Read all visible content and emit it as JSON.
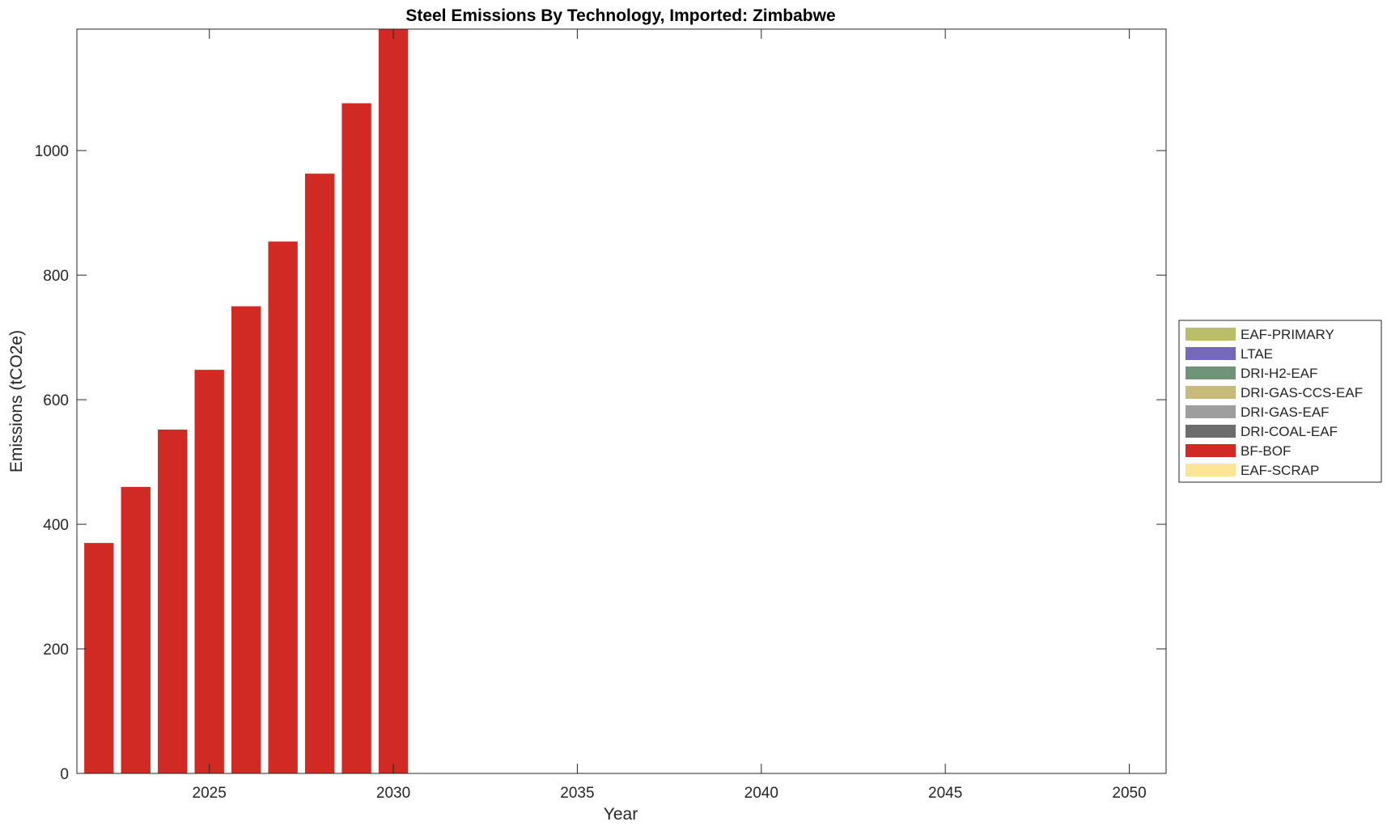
{
  "chart_data": {
    "type": "bar",
    "stacked": true,
    "title": "Steel Emissions By Technology, Imported: Zimbabwe",
    "xlabel": "Year",
    "ylabel": "Emissions (tCO2e)",
    "xlim": [
      2021.4,
      2051
    ],
    "ylim": [
      0,
      1195
    ],
    "xticks": [
      2025,
      2030,
      2035,
      2040,
      2045,
      2050
    ],
    "yticks": [
      0,
      200,
      400,
      600,
      800,
      1000
    ],
    "grid": false,
    "legend_position": "outside-right",
    "x": [
      2022,
      2023,
      2024,
      2025,
      2026,
      2027,
      2028,
      2029,
      2030
    ],
    "series": [
      {
        "name": "EAF-PRIMARY",
        "color": "#b9bf66",
        "values": [
          0,
          0,
          0,
          0,
          0,
          0,
          0,
          0,
          0
        ]
      },
      {
        "name": "LTAE",
        "color": "#7469b8",
        "values": [
          0,
          0,
          0,
          0,
          0,
          0,
          0,
          0,
          0
        ]
      },
      {
        "name": "DRI-H2-EAF",
        "color": "#6f9478",
        "values": [
          0,
          0,
          0,
          0,
          0,
          0,
          0,
          0,
          0
        ]
      },
      {
        "name": "DRI-GAS-CCS-EAF",
        "color": "#c6bb7c",
        "values": [
          0,
          0,
          0,
          0,
          0,
          0,
          0,
          0,
          0
        ]
      },
      {
        "name": "DRI-GAS-EAF",
        "color": "#9e9e9e",
        "values": [
          0,
          0,
          0,
          0,
          0,
          0,
          0,
          0,
          0
        ]
      },
      {
        "name": "DRI-COAL-EAF",
        "color": "#6d6d6d",
        "values": [
          0,
          0,
          0,
          0,
          0,
          0,
          0,
          0,
          0
        ]
      },
      {
        "name": "BF-BOF",
        "color": "#d12a24",
        "values": [
          370,
          460,
          552,
          648,
          750,
          854,
          963,
          1076,
          1195
        ]
      },
      {
        "name": "EAF-SCRAP",
        "color": "#fde597",
        "values": [
          0,
          0,
          0,
          0,
          0,
          0,
          0,
          0,
          0
        ]
      }
    ]
  }
}
